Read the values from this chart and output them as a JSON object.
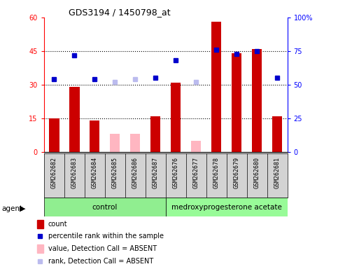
{
  "title": "GDS3194 / 1450798_at",
  "samples": [
    "GSM262682",
    "GSM262683",
    "GSM262684",
    "GSM262685",
    "GSM262686",
    "GSM262687",
    "GSM262676",
    "GSM262677",
    "GSM262678",
    "GSM262679",
    "GSM262680",
    "GSM262681"
  ],
  "count_present": [
    15,
    29,
    14,
    0,
    0,
    16,
    31,
    0,
    58,
    44,
    46,
    16
  ],
  "count_absent": [
    0,
    0,
    0,
    8,
    8,
    0,
    0,
    5,
    0,
    0,
    0,
    0
  ],
  "rank_present": [
    54,
    72,
    54,
    0,
    0,
    55,
    68,
    0,
    76,
    73,
    75,
    55
  ],
  "rank_absent": [
    0,
    0,
    0,
    52,
    54,
    0,
    0,
    52,
    0,
    0,
    0,
    0
  ],
  "absent_mask": [
    false,
    false,
    false,
    true,
    true,
    false,
    false,
    true,
    false,
    false,
    false,
    false
  ],
  "bar_color_present": "#CC0000",
  "bar_color_absent": "#FFB6C1",
  "square_color_present": "#0000CC",
  "square_color_absent": "#BBBBEE",
  "ylim_left": [
    0,
    60
  ],
  "ylim_right": [
    0,
    100
  ],
  "yticks_left": [
    0,
    15,
    30,
    45,
    60
  ],
  "ytick_labels_left": [
    "0",
    "15",
    "30",
    "45",
    "60"
  ],
  "yticks_right": [
    0,
    25,
    50,
    75,
    100
  ],
  "ytick_labels_right": [
    "0",
    "25",
    "50",
    "75",
    "100%"
  ],
  "grid_lines": [
    15,
    30,
    45
  ],
  "legend_items": [
    {
      "label": "count",
      "color": "#CC0000",
      "type": "bar"
    },
    {
      "label": "percentile rank within the sample",
      "color": "#0000CC",
      "type": "square"
    },
    {
      "label": "value, Detection Call = ABSENT",
      "color": "#FFB6C1",
      "type": "bar"
    },
    {
      "label": "rank, Detection Call = ABSENT",
      "color": "#BBBBEE",
      "type": "square"
    }
  ]
}
